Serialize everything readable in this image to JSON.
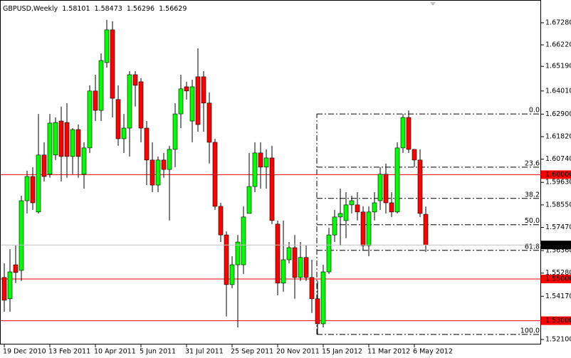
{
  "chart_data": {
    "type": "candlestick",
    "title": "GBPUSD,Weekly",
    "categories": [
      "19 Dec 2010",
      null,
      null,
      null,
      null,
      null,
      null,
      null,
      "13 Feb 2011",
      null,
      null,
      null,
      null,
      null,
      null,
      null,
      "10 Apr 2011",
      null,
      null,
      null,
      null,
      null,
      null,
      null,
      "5 Jun 2011",
      null,
      null,
      null,
      null,
      null,
      null,
      null,
      "31 Jul 2011",
      null,
      null,
      null,
      null,
      null,
      null,
      null,
      "25 Sep 2011",
      null,
      null,
      null,
      null,
      null,
      null,
      null,
      "20 Nov 2011",
      null,
      null,
      null,
      null,
      null,
      null,
      null,
      "15 Jan 2012",
      null,
      null,
      null,
      null,
      null,
      null,
      null,
      "11 Mar 2012",
      null,
      null,
      null,
      null,
      null,
      null,
      null,
      "6 May 2012",
      null,
      null
    ],
    "open": [
      1.5507,
      1.5405,
      1.5568,
      1.5541,
      1.5875,
      1.5991,
      1.5821,
      1.6094,
      1.6002,
      1.6094,
      1.6257,
      1.625,
      1.6087,
      1.6216,
      1.6002,
      1.6128,
      1.6401,
      1.6308,
      1.6537,
      1.6694,
      1.636,
      1.6172,
      1.6223,
      1.6479,
      1.6445,
      1.6223,
      1.607,
      1.595,
      1.607,
      1.6025,
      1.6121,
      1.6291,
      1.6421,
      1.6257,
      1.6469,
      1.6469,
      1.6343,
      1.6155,
      1.5848,
      1.5711,
      1.5473,
      1.5568,
      1.5568,
      1.5814,
      1.5943,
      1.6104,
      1.6036,
      1.608,
      1.5763,
      1.548,
      1.5592,
      1.565,
      1.5507,
      1.5603,
      1.5507,
      1.5405,
      1.5285,
      1.5534,
      1.5711,
      1.5797,
      1.578,
      1.5855,
      1.5855,
      1.5821,
      1.566,
      1.5821,
      1.5875,
      1.6002,
      1.5865,
      1.5821,
      1.6128,
      1.6274,
      1.6121,
      1.607,
      1.58101
    ],
    "high": [
      1.5575,
      1.5643,
      1.566,
      1.5899,
      1.6019,
      1.6036,
      1.6291,
      1.6155,
      1.6291,
      1.6274,
      1.6326,
      1.6343,
      1.6223,
      1.624,
      1.6155,
      1.6428,
      1.6479,
      1.6581,
      1.6742,
      1.6735,
      1.6428,
      1.6291,
      1.6496,
      1.6496,
      1.6462,
      1.6257,
      1.6155,
      1.6087,
      1.6104,
      1.6138,
      1.6343,
      1.6479,
      1.6445,
      1.6455,
      1.6605,
      1.6496,
      1.6394,
      1.6172,
      1.5865,
      1.5728,
      1.5609,
      1.5711,
      1.5848,
      1.6104,
      1.6155,
      1.6155,
      1.6121,
      1.6138,
      1.578,
      1.578,
      1.5677,
      1.5711,
      1.5677,
      1.566,
      1.5592,
      1.549,
      1.5568,
      1.5745,
      1.5831,
      1.5933,
      1.5916,
      1.5899,
      1.5916,
      1.5848,
      1.5848,
      1.5916,
      1.6036,
      1.6053,
      1.5916,
      1.6155,
      1.6291,
      1.6308,
      1.6121,
      1.6121,
      1.58473
    ],
    "low": [
      1.5343,
      1.5343,
      1.548,
      1.549,
      1.5814,
      1.5831,
      1.5814,
      1.5967,
      1.5985,
      1.607,
      1.5967,
      1.5985,
      1.6002,
      1.5985,
      1.5933,
      1.6104,
      1.6257,
      1.6257,
      1.6513,
      1.6274,
      1.6138,
      1.6104,
      1.6087,
      1.6326,
      1.6155,
      1.595,
      1.5916,
      1.5916,
      1.5985,
      1.578,
      1.6036,
      1.6223,
      1.636,
      1.6155,
      1.6206,
      1.6206,
      1.6053,
      1.5831,
      1.5677,
      1.532,
      1.5456,
      1.5268,
      1.5524,
      1.5814,
      1.5916,
      1.5933,
      1.5933,
      1.5763,
      1.5422,
      1.5439,
      1.5575,
      1.5405,
      1.549,
      1.549,
      1.5337,
      1.5234,
      1.5268,
      1.5524,
      1.5677,
      1.566,
      1.5695,
      1.5814,
      1.578,
      1.5637,
      1.5609,
      1.578,
      1.5831,
      1.5814,
      1.5797,
      1.5814,
      1.6104,
      1.6104,
      1.6036,
      1.5797,
      1.56296
    ],
    "close": [
      1.5398,
      1.5534,
      1.5531,
      1.5875,
      1.5991,
      1.5865,
      1.6094,
      1.5991,
      1.6247,
      1.625,
      1.6087,
      1.6087,
      1.6216,
      1.6087,
      1.6128,
      1.6401,
      1.6308,
      1.6547,
      1.6694,
      1.6366,
      1.6172,
      1.6223,
      1.6479,
      1.6428,
      1.6223,
      1.607,
      1.595,
      1.607,
      1.6025,
      1.6121,
      1.6291,
      1.6411,
      1.6401,
      1.6421,
      1.624,
      1.6343,
      1.6155,
      1.5848,
      1.5711,
      1.5473,
      1.5568,
      1.5677,
      1.5797,
      1.5943,
      1.6104,
      1.6036,
      1.608,
      1.578,
      1.548,
      1.5592,
      1.565,
      1.5507,
      1.5603,
      1.5507,
      1.5405,
      1.5285,
      1.5534,
      1.5711,
      1.5797,
      1.5814,
      1.5855,
      1.5875,
      1.5821,
      1.566,
      1.5821,
      1.5865,
      1.6002,
      1.5865,
      1.5821,
      1.6128,
      1.6274,
      1.6121,
      1.607,
      1.5814,
      1.56629
    ],
    "up_color": "#00ff00",
    "down_color": "#ff0000",
    "ylim": [
      1.5186,
      1.6837
    ],
    "yticks": [
      {
        "value": 1.6728,
        "label": "1.67280"
      },
      {
        "value": 1.6622,
        "label": "1.66220"
      },
      {
        "value": 1.6519,
        "label": "1.65190"
      },
      {
        "value": 1.6401,
        "label": "1.64010"
      },
      {
        "value": 1.629,
        "label": "1.62900"
      },
      {
        "value": 1.6182,
        "label": "1.61820"
      },
      {
        "value": 1.6074,
        "label": "1.60740"
      },
      {
        "value": 1.5963,
        "label": "1.59630"
      },
      {
        "value": 1.5855,
        "label": "1.58550"
      },
      {
        "value": 1.5747,
        "label": "1.57470"
      },
      {
        "value": 1.5636,
        "label": "1.56360"
      },
      {
        "value": 1.5528,
        "label": "1.55280"
      },
      {
        "value": 1.5417,
        "label": "1.54170"
      },
      {
        "value": 1.521,
        "label": "1.52100"
      }
    ],
    "levels": [
      {
        "value": 1.6,
        "label": "1.60000"
      },
      {
        "value": 1.55,
        "label": "1.55000"
      },
      {
        "value": 1.53,
        "label": "1.53000"
      }
    ],
    "level_color": "#ff0000",
    "current_price": 1.56629,
    "fibonacci": [
      {
        "label": "0.0",
        "price": 1.6291
      },
      {
        "label": "23.6",
        "price": 1.6036
      },
      {
        "label": "38.2",
        "price": 1.5886
      },
      {
        "label": "50.0",
        "price": 1.576
      },
      {
        "label": "61.8",
        "price": 1.5637
      },
      {
        "label": "100.0",
        "price": 1.5234
      }
    ]
  }
}
